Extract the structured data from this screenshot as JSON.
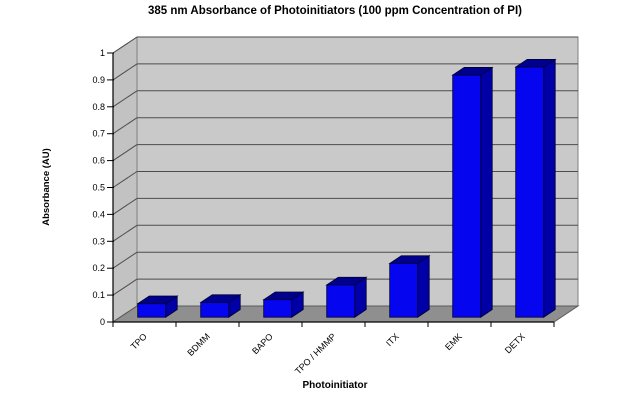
{
  "chart_data": {
    "type": "bar",
    "style": "3d-column",
    "title": "385 nm Absorbance of Photoinitiators (100 ppm Concentration of PI)",
    "xlabel": "Photoinitiator",
    "ylabel": "Absorbance (AU)",
    "categories": [
      "TPO",
      "BDMM",
      "BAPO",
      "TPO / HMMP",
      "ITX",
      "EMK",
      "DETX"
    ],
    "values": [
      0.05,
      0.055,
      0.065,
      0.12,
      0.2,
      0.9,
      0.93
    ],
    "ylim": [
      0,
      1
    ],
    "ytick_step": 0.1,
    "ytick_labels": [
      "0",
      "0.1",
      "0.2",
      "0.3",
      "0.4",
      "0.5",
      "0.6",
      "0.7",
      "0.8",
      "0.9",
      "1"
    ],
    "grid": true,
    "legend": false,
    "colors": {
      "background": "#ffffff",
      "back_wall": "#c9c9c9",
      "side_wall": "#c2c2c2",
      "floor": "#8f8f8f",
      "floor_edge": "#5a5a5a",
      "wall_edge": "#808080",
      "gridline": "#4d4d4d",
      "axis": "#000000",
      "text": "#000000",
      "bar_front": "#0505f0",
      "bar_top": "#00008c",
      "bar_side": "#0000a6",
      "bar_edge": "#000030"
    }
  }
}
